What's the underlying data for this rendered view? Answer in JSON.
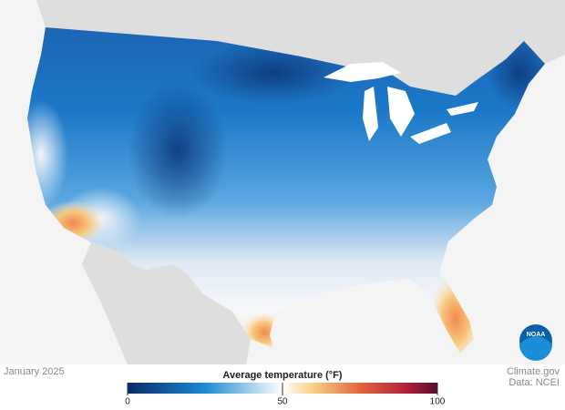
{
  "date": "January 2025",
  "legend": {
    "title": "Average temperature (°F)",
    "lim": [
      0,
      100
    ],
    "ticks": [
      0,
      50,
      100
    ]
  },
  "credits": [
    "Climate.gov",
    "Data: NCEI"
  ],
  "logo": "NOAA"
}
